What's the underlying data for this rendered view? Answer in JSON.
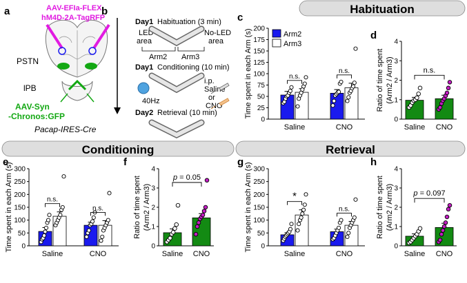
{
  "colors": {
    "arm2": "#1a1aee",
    "arm3": "#ffffff",
    "ratio_bar": "#138a13",
    "saline_dot": "#ffffff",
    "cno_dot": "#c21ec2",
    "banner_fill": "#dedede",
    "virus_magenta": "#e11be1",
    "virus_green": "#13a813",
    "led_blue": "#4fa3e0"
  },
  "panel_letters": [
    "a",
    "b",
    "c",
    "d",
    "e",
    "f",
    "g",
    "h"
  ],
  "banners": {
    "habituation": "Habituation",
    "conditioning": "Conditioning",
    "retrieval": "Retrieval"
  },
  "panel_a": {
    "virus1_line1": "AAV-EFIa-FLEX",
    "virus1_line2": "hM4D-2A-TagRFP",
    "region1": "PSTN",
    "region2": "lPB",
    "virus2_line1": "AAV-Syn",
    "virus2_line2": "-Chronos:GFP",
    "mouse_line": "Pacap-IRES-Cre"
  },
  "panel_b": {
    "day1_habituation": "Day1",
    "habituation_text": "Habituation (3 min)",
    "led_area_1": "LED",
    "led_area_2": "area",
    "noled_area_1": "No-LED",
    "noled_area_2": "area",
    "arm2": "Arm2",
    "arm3": "Arm3",
    "day1_conditioning": "Day1",
    "conditioning_text": "Conditioning (10 min)",
    "ip": "i.p.",
    "saline": "Saline",
    "or": "or",
    "cno": "CNO",
    "hz": "40Hz",
    "day2": "Day2",
    "retrieval_text": "Retrieval (10 min)"
  },
  "chart_data": [
    {
      "id": "c",
      "type": "bar",
      "ylabel": "Time spent in each Arm (s)",
      "ylim": [
        0,
        200
      ],
      "yticks": [
        0,
        25,
        50,
        75,
        100,
        125,
        150,
        175,
        200
      ],
      "groups": [
        "Saline",
        "CNO"
      ],
      "legend": [
        "Arm2",
        "Arm3"
      ],
      "series": [
        {
          "name": "Arm2",
          "values": [
            53,
            57
          ],
          "errors": [
            8,
            8
          ],
          "points": [
            [
              35,
              38,
              45,
              50,
              52,
              58,
              62,
              70
            ],
            [
              30,
              40,
              52,
              55,
              58,
              60,
              78,
              82
            ]
          ]
        },
        {
          "name": "Arm3",
          "values": [
            59,
            69
          ],
          "errors": [
            8,
            10
          ],
          "points": [
            [
              28,
              45,
              52,
              58,
              65,
              72,
              78,
              92
            ],
            [
              40,
              48,
              58,
              62,
              68,
              72,
              80,
              155
            ]
          ]
        }
      ],
      "sig": [
        {
          "group": 0,
          "label": "n.s."
        },
        {
          "group": 1,
          "label": "n.s."
        }
      ]
    },
    {
      "id": "d",
      "type": "bar",
      "ylabel": "Ratio of time spent (Arm2 / Arm3)",
      "ylim": [
        0,
        4
      ],
      "yticks": [
        0,
        1,
        2,
        3,
        4
      ],
      "categories": [
        "Saline",
        "CNO"
      ],
      "values": [
        0.97,
        1.05
      ],
      "errors": [
        0.15,
        0.18
      ],
      "points": [
        [
          0.6,
          0.7,
          0.85,
          0.95,
          1.0,
          1.1,
          1.3,
          1.6
        ],
        [
          0.5,
          0.6,
          0.8,
          0.95,
          1.05,
          1.2,
          1.35,
          1.6,
          1.9
        ]
      ],
      "sig": {
        "label": "n.s."
      }
    },
    {
      "id": "e",
      "type": "bar",
      "ylabel": "Time spent in each Arm (s)",
      "ylim": [
        0,
        300
      ],
      "yticks": [
        0,
        50,
        100,
        150,
        200,
        250,
        300
      ],
      "groups": [
        "Saline",
        "CNO"
      ],
      "series": [
        {
          "name": "Arm2",
          "values": [
            56,
            80
          ],
          "errors": [
            15,
            12
          ],
          "points": [
            [
              15,
              25,
              30,
              40,
              55,
              70,
              90,
              100,
              120
            ],
            [
              35,
              50,
              60,
              80,
              85,
              95,
              110,
              130
            ]
          ]
        },
        {
          "name": "Arm3",
          "values": [
            115,
            80
          ],
          "errors": [
            17,
            18
          ],
          "points": [
            [
              80,
              90,
              100,
              110,
              120,
              140,
              150,
              270
            ],
            [
              20,
              35,
              60,
              70,
              80,
              90,
              100,
              205
            ]
          ]
        }
      ],
      "sig": [
        {
          "group": 0,
          "label": "n.s."
        },
        {
          "group": 1,
          "label": "n.s."
        }
      ]
    },
    {
      "id": "f",
      "type": "bar",
      "ylabel": "Ratio of time spent (Arm2 / Arm3)",
      "ylim": [
        0,
        4
      ],
      "yticks": [
        0,
        1,
        2,
        3,
        4
      ],
      "categories": [
        "Saline",
        "CNO"
      ],
      "values": [
        0.68,
        1.45
      ],
      "errors": [
        0.2,
        0.22
      ],
      "points": [
        [
          0.2,
          0.3,
          0.4,
          0.6,
          0.7,
          0.9,
          1.1,
          2.1
        ],
        [
          0.6,
          1.0,
          1.2,
          1.4,
          1.5,
          1.6,
          1.8,
          2.0,
          3.4
        ]
      ],
      "sig": {
        "p": "p",
        "label": " = 0.05"
      }
    },
    {
      "id": "g",
      "type": "bar",
      "ylabel": "Time spent in each Arm (s)",
      "ylim": [
        0,
        300
      ],
      "yticks": [
        0,
        50,
        100,
        150,
        200,
        250,
        300
      ],
      "groups": [
        "Saline",
        "CNO"
      ],
      "series": [
        {
          "name": "Arm2",
          "values": [
            43,
            55
          ],
          "errors": [
            8,
            10
          ],
          "points": [
            [
              20,
              28,
              35,
              40,
              45,
              50,
              55,
              65,
              85
            ],
            [
              25,
              30,
              40,
              50,
              60,
              70,
              90,
              100
            ]
          ]
        },
        {
          "name": "Arm3",
          "values": [
            120,
            80
          ],
          "errors": [
            20,
            15
          ],
          "points": [
            [
              60,
              85,
              100,
              110,
              125,
              140,
              160,
              200
            ],
            [
              35,
              50,
              70,
              80,
              90,
              100,
              110,
              180
            ]
          ]
        }
      ],
      "sig": [
        {
          "group": 0,
          "label": "*"
        },
        {
          "group": 1,
          "label": "n.s."
        }
      ]
    },
    {
      "id": "h",
      "type": "bar",
      "ylabel": "Ratio of time spent (Arm2 / Arm3)",
      "ylim": [
        0,
        4
      ],
      "yticks": [
        0,
        1,
        2,
        3,
        4
      ],
      "categories": [
        "Saline",
        "CNO"
      ],
      "values": [
        0.5,
        0.95
      ],
      "errors": [
        0.12,
        0.22
      ],
      "points": [
        [
          0.15,
          0.2,
          0.3,
          0.4,
          0.5,
          0.6,
          0.75,
          0.9
        ],
        [
          0.2,
          0.3,
          0.6,
          0.8,
          1.0,
          1.2,
          1.5,
          1.9,
          2.1
        ]
      ],
      "sig": {
        "p": "p",
        "label": " = 0.097"
      }
    }
  ]
}
